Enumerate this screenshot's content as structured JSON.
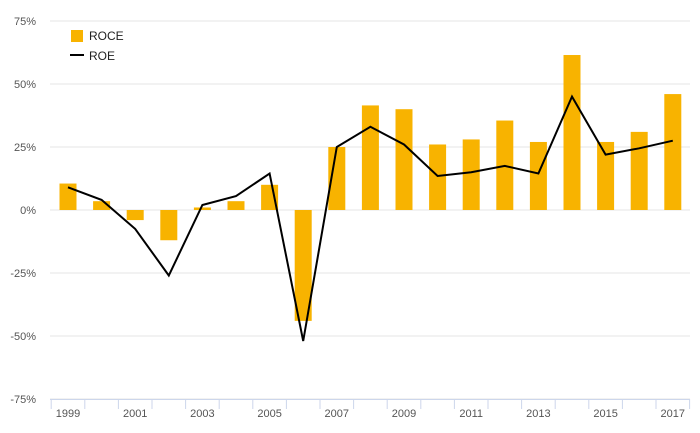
{
  "chart_data": {
    "type": "bar",
    "x": [
      1999,
      2000,
      2001,
      2002,
      2003,
      2004,
      2005,
      2006,
      2007,
      2008,
      2009,
      2010,
      2011,
      2012,
      2013,
      2014,
      2015,
      2016,
      2017
    ],
    "x_tick_labels": [
      "1999",
      "2001",
      "2003",
      "2005",
      "2007",
      "2009",
      "2011",
      "2013",
      "2015",
      "2017"
    ],
    "series": [
      {
        "name": "ROCE",
        "type": "bar",
        "color": "#F8B300",
        "values": [
          10.5,
          3.5,
          -4,
          -12,
          1,
          3.5,
          10,
          -44,
          25,
          41.5,
          40,
          26,
          28,
          35.5,
          27,
          61.5,
          27,
          31,
          46
        ]
      },
      {
        "name": "ROE",
        "type": "line",
        "color": "#000000",
        "values": [
          9,
          4,
          -7.5,
          -26,
          2,
          5.5,
          14.5,
          -52,
          25,
          33,
          26,
          13.5,
          15,
          17.5,
          14.5,
          45,
          22,
          24.5,
          27.5
        ]
      }
    ],
    "ylim": [
      -75,
      75
    ],
    "y_ticks": [
      -75,
      -50,
      -25,
      0,
      25,
      50,
      75
    ],
    "y_tick_labels": [
      "-75%",
      "-50%",
      "-25%",
      "0%",
      "25%",
      "50%",
      "75%"
    ],
    "title": "",
    "xlabel": "",
    "ylabel": "",
    "grid": true,
    "legend_position": "top-left"
  }
}
